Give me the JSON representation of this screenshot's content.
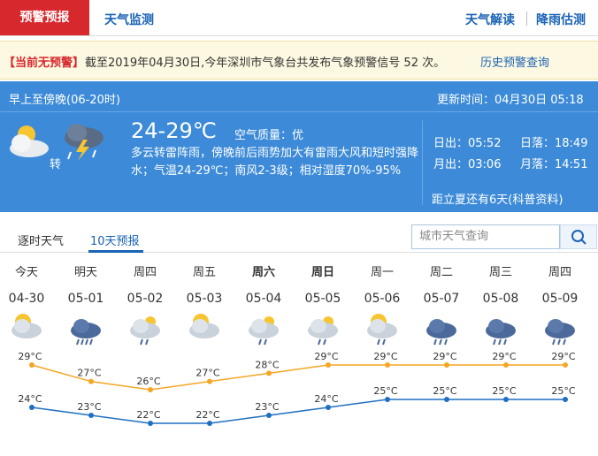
{
  "header": {
    "tabs": [
      "预警预报",
      "天气监测"
    ],
    "links": [
      "天气解读",
      "降雨估测"
    ]
  },
  "alert": {
    "status": "【当前无预警】",
    "text": "截至2019年04月30日,今年深圳市气象台共发布气象预警信号 52 次。",
    "link": "历史预警查询"
  },
  "current": {
    "period": "早上至傍晚(06-20时)",
    "update": "更新时间：04月30日 05:18",
    "temp": "24-29℃",
    "air": "空气质量：优",
    "transition": "转",
    "desc": "多云转雷阵雨，傍晚前后雨势加大有雷雨大风和短时强降水；气温24-29℃；南风2-3级；相对湿度70%-95%",
    "sunrise": "日出：05:52",
    "sunset": "日落：18:49",
    "moonrise": "月出：03:06",
    "moonset": "月落：14:51",
    "note": "距立夏还有6天(科普资料)"
  },
  "tabs2": [
    "逐时天气",
    "10天预报"
  ],
  "search": "城市天气查询",
  "forecast": {
    "weekdays": [
      "今天",
      "明天",
      "周四",
      "周五",
      "周六",
      "周日",
      "周一",
      "周二",
      "周三",
      "周四"
    ],
    "dates": [
      "04-30",
      "05-01",
      "05-02",
      "05-03",
      "05-04",
      "05-05",
      "05-06",
      "05-07",
      "05-08",
      "05-09"
    ],
    "high": [
      29,
      27,
      26,
      27,
      28,
      29,
      29,
      29,
      29,
      29
    ],
    "high_labels": [
      "29°C",
      "27°C",
      "26°C",
      "27°C",
      "28°C",
      "29°C",
      "29°C",
      "29°C",
      "29°C",
      "29°C"
    ],
    "low": [
      24,
      23,
      22,
      22,
      23,
      24,
      25,
      25,
      25,
      25
    ],
    "low_labels": [
      "24°C",
      "23°C",
      "22°C",
      "22°C",
      "23°C",
      "24°C",
      "25°C",
      "25°C",
      "25°C",
      "25°C"
    ],
    "high_color": "#f5a623",
    "low_color": "#1f6fc0"
  }
}
